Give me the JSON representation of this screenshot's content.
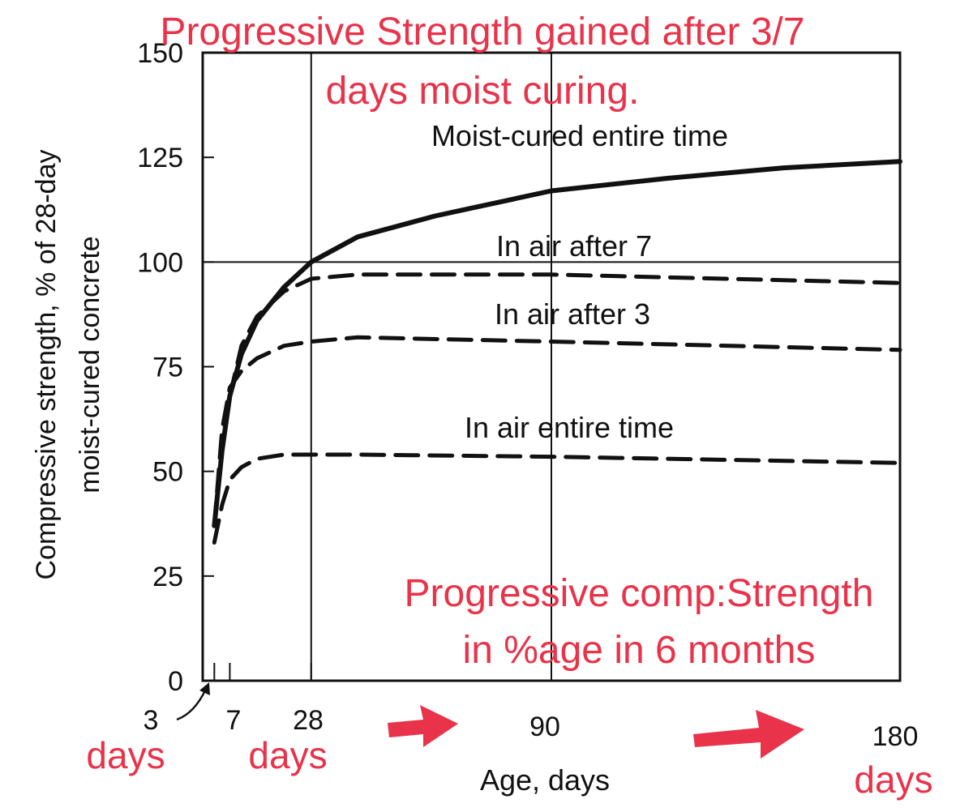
{
  "chart_data": {
    "type": "line",
    "title_line1": "Progressive Strength  gained  after 3/7",
    "title_line2": "days moist curing.",
    "ylabel_line1": "Compressive strength, % of 28-day",
    "ylabel_line2": "moist-cured concrete",
    "xlabel": "Age, days",
    "xlim": [
      0,
      180
    ],
    "ylim": [
      0,
      150
    ],
    "yticks": [
      {
        "value": 0,
        "label": "0"
      },
      {
        "value": 25,
        "label": "25"
      },
      {
        "value": 50,
        "label": "50"
      },
      {
        "value": 75,
        "label": "75"
      },
      {
        "value": 100,
        "label": "100"
      },
      {
        "value": 125,
        "label": "125"
      },
      {
        "value": 150,
        "label": "150"
      }
    ],
    "xticks": [
      {
        "value": 3,
        "label": "3"
      },
      {
        "value": 7,
        "label": "7"
      },
      {
        "value": 28,
        "label": "28"
      },
      {
        "value": 90,
        "label": "90"
      },
      {
        "value": 180,
        "label": "180"
      }
    ],
    "series": [
      {
        "name": "Moist-cured entire time",
        "style": "solid",
        "points": [
          [
            3,
            37
          ],
          [
            5,
            55
          ],
          [
            7,
            68
          ],
          [
            10,
            78
          ],
          [
            14,
            86
          ],
          [
            21,
            94
          ],
          [
            28,
            100
          ],
          [
            40,
            106
          ],
          [
            60,
            111
          ],
          [
            90,
            117
          ],
          [
            120,
            120
          ],
          [
            150,
            122.5
          ],
          [
            180,
            124
          ]
        ]
      },
      {
        "name": "In air after 7",
        "style": "dashed",
        "points": [
          [
            7,
            68
          ],
          [
            10,
            80
          ],
          [
            14,
            87
          ],
          [
            21,
            93
          ],
          [
            28,
            96
          ],
          [
            40,
            97
          ],
          [
            90,
            97
          ],
          [
            180,
            95
          ]
        ]
      },
      {
        "name": "In air after 3",
        "style": "dashed",
        "points": [
          [
            3,
            37
          ],
          [
            5,
            60
          ],
          [
            7,
            70
          ],
          [
            10,
            74
          ],
          [
            14,
            77
          ],
          [
            21,
            80
          ],
          [
            28,
            81
          ],
          [
            40,
            82
          ],
          [
            90,
            81
          ],
          [
            180,
            79
          ]
        ]
      },
      {
        "name": "In air entire time",
        "style": "dashed",
        "points": [
          [
            3,
            33
          ],
          [
            5,
            42
          ],
          [
            7,
            48
          ],
          [
            10,
            51
          ],
          [
            14,
            53
          ],
          [
            21,
            54
          ],
          [
            28,
            54
          ],
          [
            40,
            54
          ],
          [
            90,
            53.5
          ],
          [
            180,
            52
          ]
        ]
      }
    ],
    "annotation_lines": [
      "Progressive comp:Strength",
      "in %age in 6 months"
    ],
    "day_markers": [
      "days",
      "days",
      "days"
    ],
    "colors": {
      "annotation": "#e8334a",
      "ink": "#111111"
    }
  }
}
